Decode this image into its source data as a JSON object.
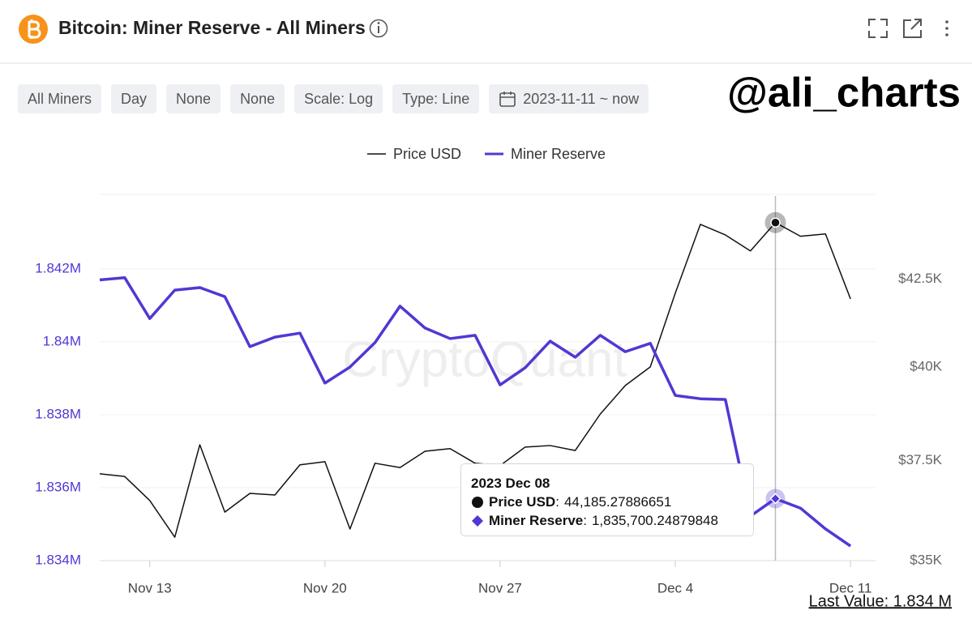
{
  "header": {
    "title": "Bitcoin: Miner Reserve - All Miners"
  },
  "filters": [
    "All Miners",
    "Day",
    "None",
    "None",
    "Scale: Log",
    "Type: Line",
    "2023-11-11 ~ now"
  ],
  "handle": "@ali_charts",
  "chart_data": {
    "type": "line",
    "watermark": "CryptoQuant",
    "x": [
      "2023-11-11",
      "2023-11-12",
      "2023-11-13",
      "2023-11-14",
      "2023-11-15",
      "2023-11-16",
      "2023-11-17",
      "2023-11-18",
      "2023-11-19",
      "2023-11-20",
      "2023-11-21",
      "2023-11-22",
      "2023-11-23",
      "2023-11-24",
      "2023-11-25",
      "2023-11-26",
      "2023-11-27",
      "2023-11-28",
      "2023-11-29",
      "2023-11-30",
      "2023-12-01",
      "2023-12-02",
      "2023-12-03",
      "2023-12-04",
      "2023-12-05",
      "2023-12-06",
      "2023-12-07",
      "2023-12-08",
      "2023-12-09",
      "2023-12-10",
      "2023-12-11"
    ],
    "xlim": [
      "2023-11-11",
      "2023-12-12"
    ],
    "xticks": [
      {
        "value": "2023-11-13",
        "label": "Nov 13"
      },
      {
        "value": "2023-11-20",
        "label": "Nov 20"
      },
      {
        "value": "2023-11-27",
        "label": "Nov 27"
      },
      {
        "value": "2023-12-04",
        "label": "Dec 4"
      },
      {
        "value": "2023-12-11",
        "label": "Dec 11"
      }
    ],
    "ylim": [
      1834000,
      1844000
    ],
    "yticks": [
      {
        "value": 1834000,
        "label": "1.834M"
      },
      {
        "value": 1836000,
        "label": "1.836M"
      },
      {
        "value": 1838000,
        "label": "1.838M"
      },
      {
        "value": 1840000,
        "label": "1.84M"
      },
      {
        "value": 1842000,
        "label": "1.842M"
      }
    ],
    "y2lim": [
      35000,
      45000
    ],
    "y2log": true,
    "y2ticks": [
      {
        "value": 35000,
        "label": "$35K"
      },
      {
        "value": 37500,
        "label": "$37.5K"
      },
      {
        "value": 40000,
        "label": "$40K"
      },
      {
        "value": 42500,
        "label": "$42.5K"
      }
    ],
    "grid": true,
    "series": [
      {
        "name": "Price USD",
        "color": "#111111",
        "axis": "y2",
        "marker": "circle",
        "values": [
          37160,
          37090,
          36480,
          35570,
          37910,
          36190,
          36660,
          36620,
          37390,
          37470,
          35770,
          37430,
          37320,
          37740,
          37810,
          37430,
          37370,
          37850,
          37890,
          37760,
          38720,
          39490,
          40000,
          42090,
          44130,
          43810,
          43330,
          44185.27886651,
          43770,
          43840,
          41920
        ]
      },
      {
        "name": "Miner Reserve",
        "color": "#5138d3",
        "axis": "y",
        "marker": "diamond",
        "values": [
          1841700,
          1841760,
          1840640,
          1841420,
          1841490,
          1841240,
          1839870,
          1840130,
          1840240,
          1838870,
          1839310,
          1839980,
          1840980,
          1840380,
          1840090,
          1840180,
          1838820,
          1839290,
          1840020,
          1839580,
          1840180,
          1839730,
          1839960,
          1838530,
          1838440,
          1838420,
          1835220,
          1835700.24879848,
          1835440,
          1834870,
          1834400
        ]
      }
    ],
    "tooltip": {
      "x": "2023-12-08",
      "title": "2023 Dec 08",
      "items": [
        {
          "name": "Price USD",
          "value": "44,185.27886651"
        },
        {
          "name": "Miner Reserve",
          "value": "1,835,700.24879848"
        }
      ]
    },
    "last_value": "Last Value: 1.834 M"
  }
}
